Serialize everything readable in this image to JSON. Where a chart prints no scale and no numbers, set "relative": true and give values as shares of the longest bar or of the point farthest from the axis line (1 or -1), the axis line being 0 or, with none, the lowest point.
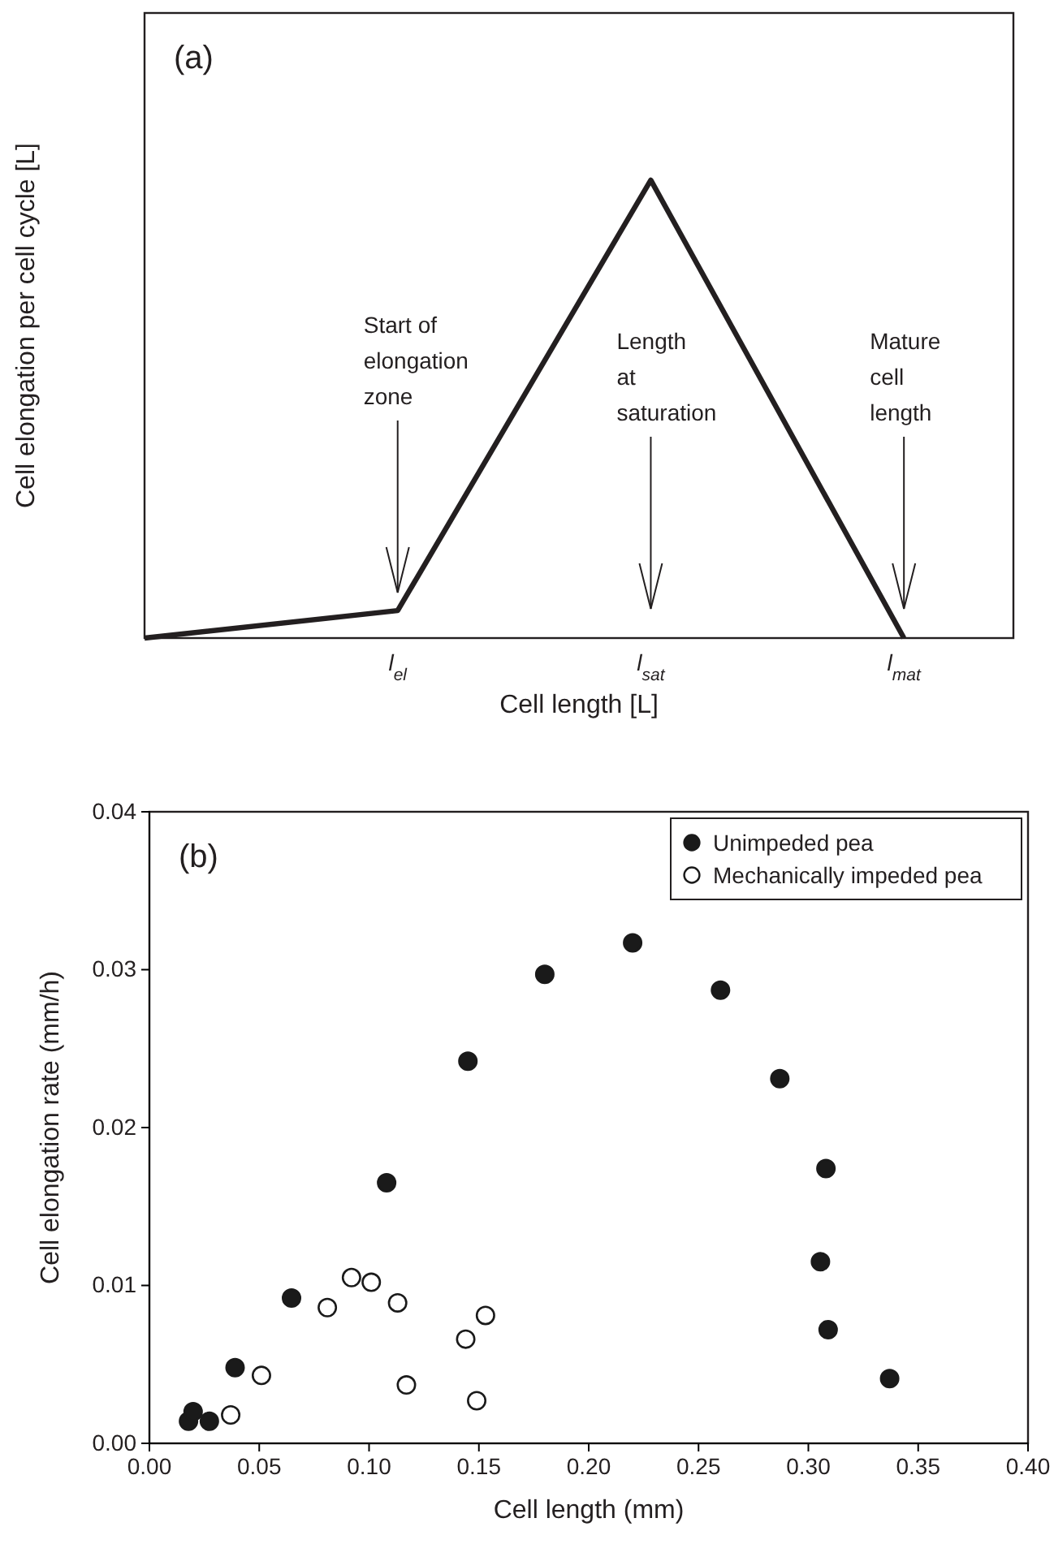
{
  "chart_data": [
    {
      "type": "line",
      "title": "(a)",
      "xlabel": "Cell length [L]",
      "ylabel": "Cell elongation per cell cycle [L]",
      "relative": true,
      "tick_labels": "x",
      "categories": [
        null,
        "l$_{el}$",
        "l$_{sat}$",
        "l$_{mat}$"
      ],
      "series": [
        {
          "color": "#231f20",
          "values": [
            0,
            0.06,
            1,
            0
          ]
        }
      ],
      "annotations": [
        "Start of elongation zone",
        "Length at saturation",
        "Mature cell length"
      ],
      "marker": "none",
      "line_style": "solid",
      "legend": false
    },
    {
      "type": "scatter",
      "title": "(b)",
      "xlabel": "Cell length (mm)",
      "ylabel": "Cell elongation rate (mm/h)",
      "xlim": [
        0,
        0.4
      ],
      "xticks": [
        {
          "value": 0,
          "label": "0.00"
        },
        {
          "value": 0.05,
          "label": "0.05"
        },
        {
          "value": 0.1,
          "label": "0.10"
        },
        {
          "value": 0.15,
          "label": "0.15"
        },
        {
          "value": 0.2,
          "label": "0.20"
        },
        {
          "value": 0.25,
          "label": "0.25"
        },
        {
          "value": 0.3,
          "label": "0.30"
        },
        {
          "value": 0.35,
          "label": "0.35"
        },
        {
          "value": 0.4,
          "label": "0.40"
        }
      ],
      "ylim": [
        0,
        0.04
      ],
      "yticks": [
        {
          "value": 0,
          "label": "0.00"
        },
        {
          "value": 0.01,
          "label": "0.01"
        },
        {
          "value": 0.02,
          "label": "0.02"
        },
        {
          "value": 0.03,
          "label": "0.03"
        },
        {
          "value": 0.04,
          "label": "0.04"
        }
      ],
      "marker": "circle",
      "legend": "top right",
      "series": [
        {
          "name": "Unimpeded pea",
          "color": "#1a1a1a",
          "x": [
            0.0178,
            0.0199,
            0.0273,
            0.039,
            0.0647,
            0.108,
            0.145,
            0.18,
            0.22,
            0.26,
            0.287,
            0.308,
            0.3055,
            0.309,
            0.337
          ],
          "values": [
            0.0014,
            0.002,
            0.0014,
            0.0048,
            0.0092,
            0.0165,
            0.0242,
            0.0297,
            0.0317,
            0.0287,
            0.0231,
            0.0174,
            0.0115,
            0.0072,
            0.0041
          ]
        },
        {
          "name": "Mechanically impeded pea",
          "color": "#ffffff",
          "x": [
            0.037,
            0.051,
            0.081,
            0.092,
            0.101,
            0.113,
            0.117,
            0.144,
            0.149,
            0.153
          ],
          "values": [
            0.0018,
            0.0043,
            0.0086,
            0.0105,
            0.0102,
            0.0089,
            0.0037,
            0.0066,
            0.0027,
            0.0081
          ]
        }
      ]
    }
  ]
}
